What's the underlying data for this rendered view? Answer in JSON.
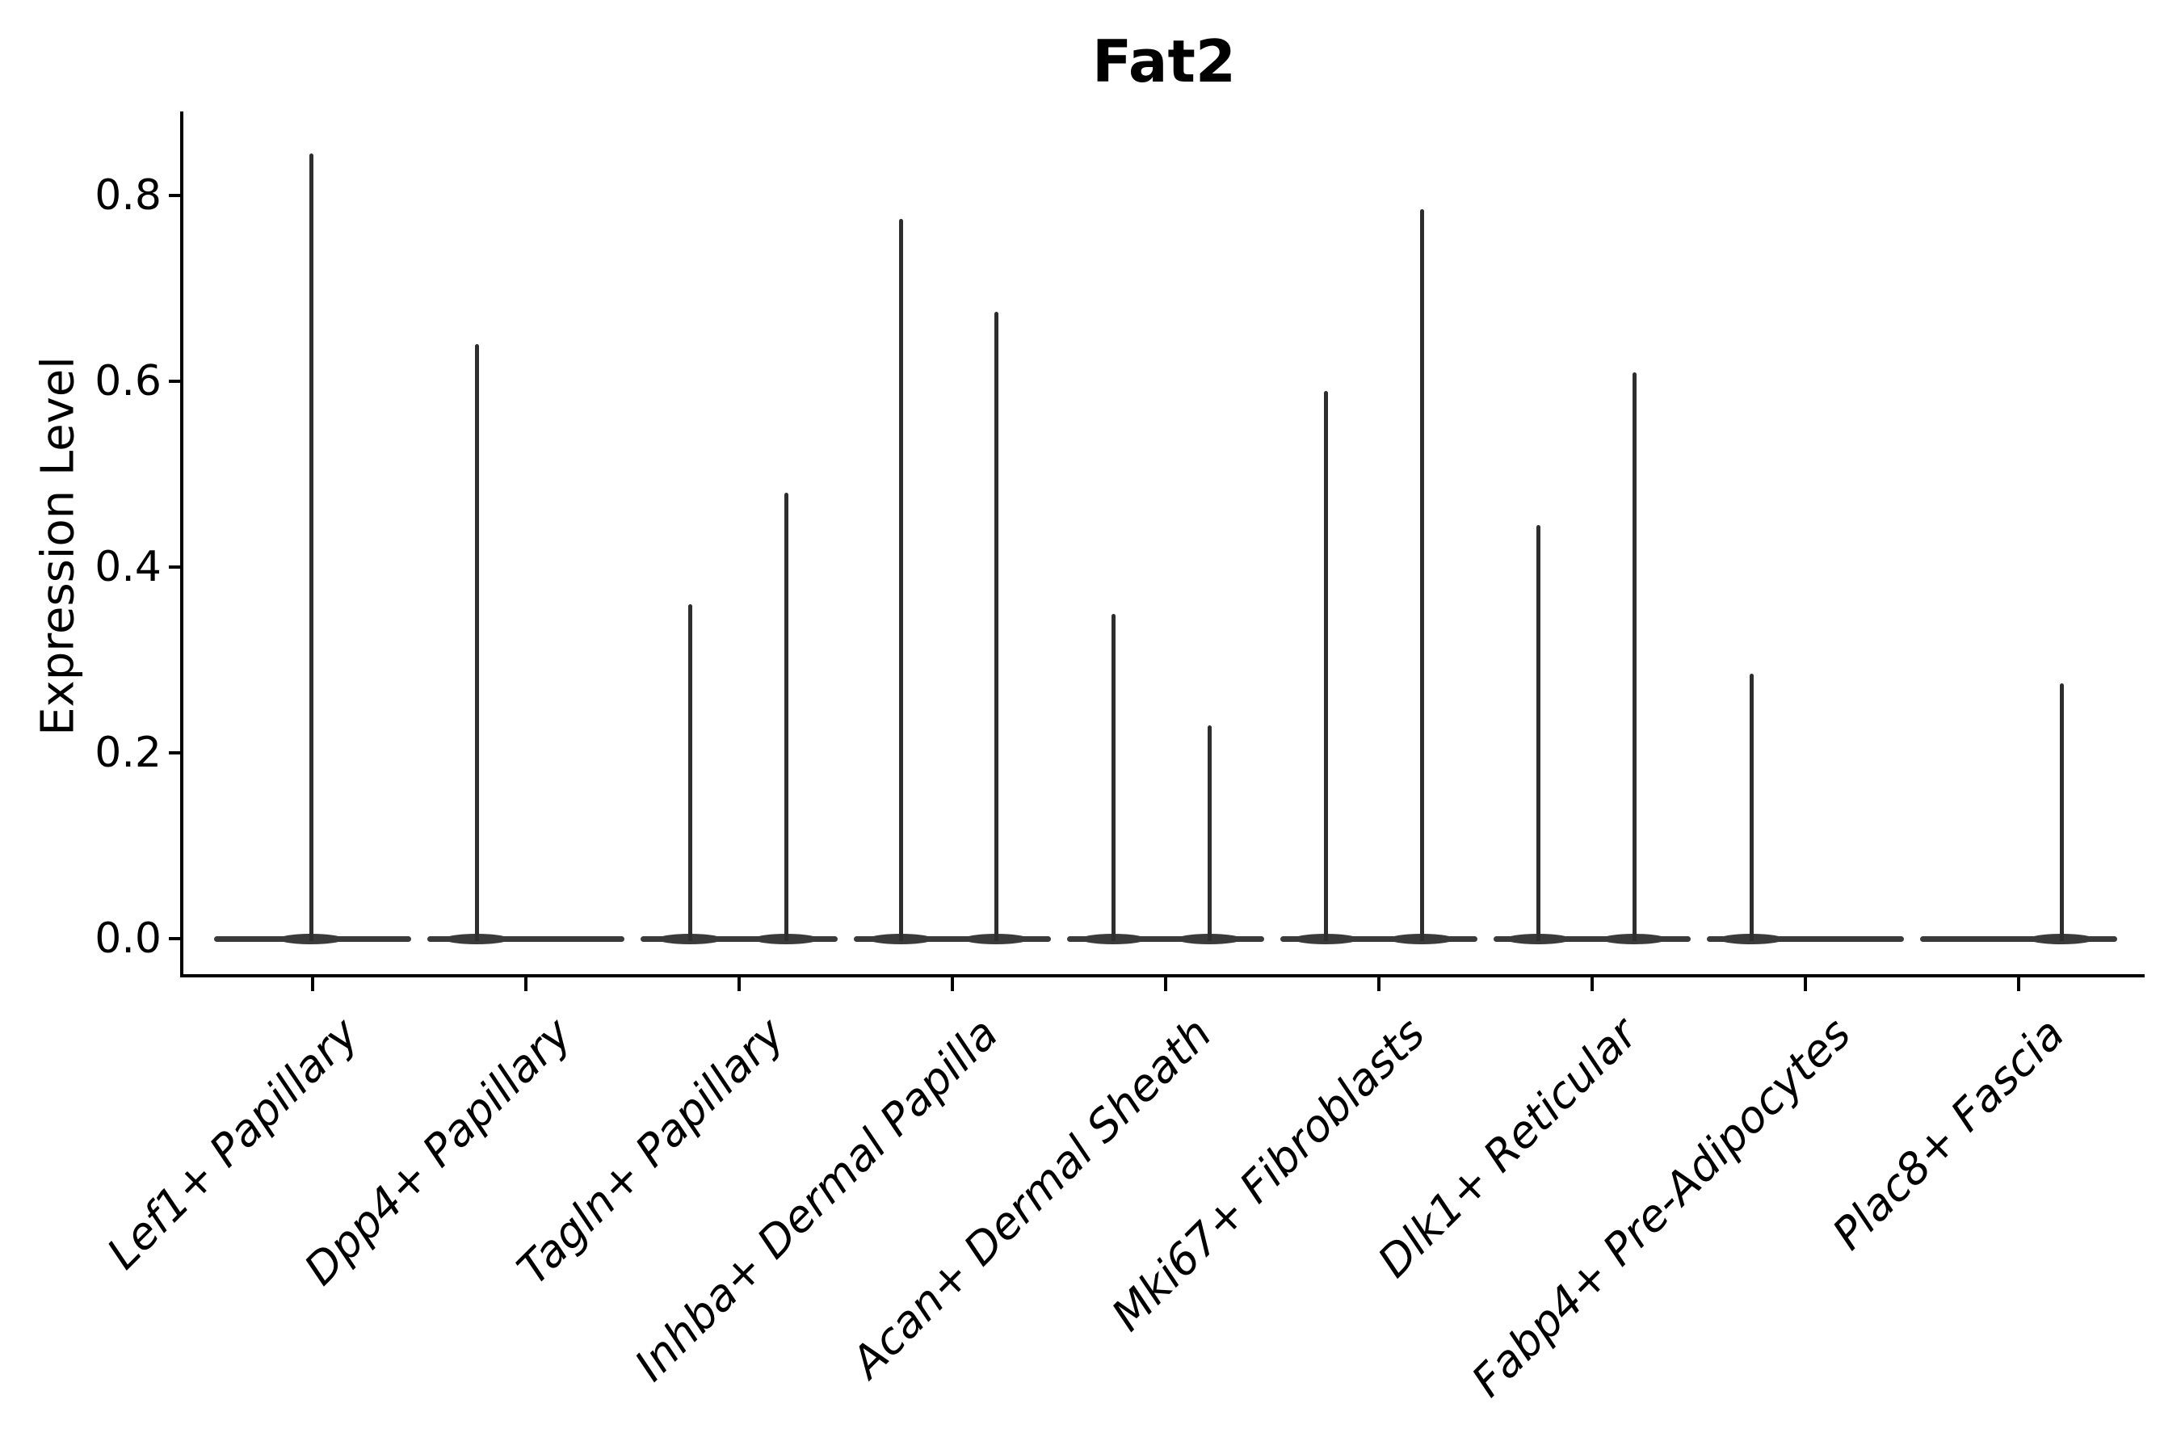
{
  "figure": {
    "title": "Fat2",
    "background_color": "#ffffff"
  },
  "axes": {
    "ylabel": "Expression Level",
    "y_tick_labels": [
      "0.0",
      "0.2",
      "0.4",
      "0.6",
      "0.8"
    ],
    "x_tick_labels": [
      "Lef1+ Papillary",
      "Dpp4+ Papillary",
      "Tagln+ Papillary",
      "Inhba+ Dermal Papilla",
      "Acan+ Dermal Sheath",
      "Mki67+ Fibroblasts",
      "Dlk1+ Reticular",
      "Fabp4+ Pre-Adipocytes",
      "Plac8+ Fascia"
    ]
  },
  "chart_data": {
    "type": "violin",
    "title": "Fat2",
    "xlabel": "",
    "ylabel": "Expression Level",
    "ylim": [
      0,
      0.89
    ],
    "y_ticks": [
      0.0,
      0.2,
      0.4,
      0.6,
      0.8
    ],
    "grid": false,
    "legend": "none",
    "layout_hints": {
      "spines": [
        "left",
        "bottom"
      ],
      "x_tick_rotation": 45,
      "x_labels_italic": true,
      "violin_shape": "flat base at 0 with thin vertical density spikes"
    },
    "categories": [
      "Lef1+ Papillary",
      "Dpp4+ Papillary",
      "Tagln+ Papillary",
      "Inhba+ Dermal Papilla",
      "Acan+ Dermal Sheath",
      "Mki67+ Fibroblasts",
      "Dlk1+ Reticular",
      "Fabp4+ Pre-Adipocytes",
      "Plac8+ Fascia"
    ],
    "violins": [
      {
        "category": "Lef1+ Papillary",
        "baseline": 0.0,
        "spikes": [
          {
            "dx": -2,
            "max": 0.845
          }
        ]
      },
      {
        "category": "Dpp4+ Papillary",
        "baseline": 0.0,
        "spikes": [
          {
            "dx": -61,
            "max": 0.64
          }
        ]
      },
      {
        "category": "Tagln+ Papillary",
        "baseline": 0.0,
        "spikes": [
          {
            "dx": -61,
            "max": 0.36
          },
          {
            "dx": 58,
            "max": 0.48
          }
        ]
      },
      {
        "category": "Inhba+ Dermal Papilla",
        "baseline": 0.0,
        "spikes": [
          {
            "dx": -64,
            "max": 0.775
          },
          {
            "dx": 54,
            "max": 0.675
          }
        ]
      },
      {
        "category": "Acan+ Dermal Sheath",
        "baseline": 0.0,
        "spikes": [
          {
            "dx": -65,
            "max": 0.35
          },
          {
            "dx": 54,
            "max": 0.23
          }
        ]
      },
      {
        "category": "Mki67+ Fibroblasts",
        "baseline": 0.0,
        "spikes": [
          {
            "dx": -66,
            "max": 0.59
          },
          {
            "dx": 53,
            "max": 0.785
          }
        ]
      },
      {
        "category": "Dlk1+ Reticular",
        "baseline": 0.0,
        "spikes": [
          {
            "dx": -67,
            "max": 0.445
          },
          {
            "dx": 52,
            "max": 0.61
          }
        ]
      },
      {
        "category": "Fabp4+ Pre-Adipocytes",
        "baseline": 0.0,
        "spikes": [
          {
            "dx": -67,
            "max": 0.285
          }
        ]
      },
      {
        "category": "Plac8+ Fascia",
        "baseline": 0.0,
        "spikes": [
          {
            "dx": 53,
            "max": 0.275
          }
        ]
      }
    ],
    "colors": {
      "violin_body": "#3a3a3a",
      "violin_spike": "#2e2e2e",
      "spine": "#000000",
      "text": "#000000",
      "background": "#ffffff"
    }
  }
}
